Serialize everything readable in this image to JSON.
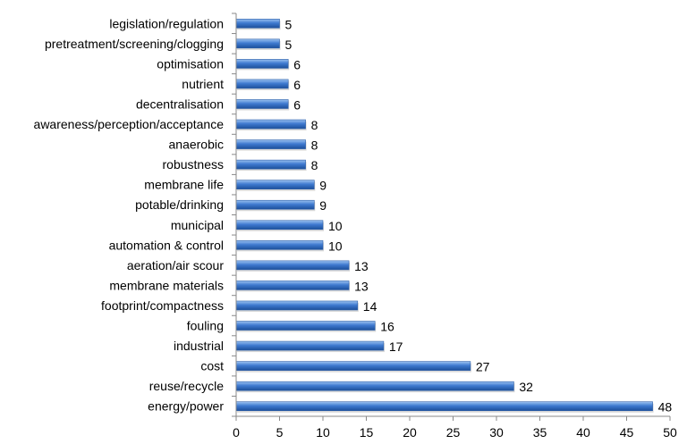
{
  "chart_data": {
    "type": "bar",
    "orientation": "horizontal",
    "categories": [
      "legislation/regulation",
      "pretreatment/screening/clogging",
      "optimisation",
      "nutrient",
      "decentralisation",
      "awareness/perception/acceptance",
      "anaerobic",
      "robustness",
      "membrane life",
      "potable/drinking",
      "municipal",
      "automation & control",
      "aeration/air scour",
      "membrane materials",
      "footprint/compactness",
      "fouling",
      "industrial",
      "cost",
      "reuse/recycle",
      "energy/power"
    ],
    "values": [
      5,
      5,
      6,
      6,
      6,
      8,
      8,
      8,
      9,
      9,
      10,
      10,
      13,
      13,
      14,
      16,
      17,
      27,
      32,
      48
    ],
    "xlim": [
      0,
      50
    ],
    "x_ticks": [
      0,
      5,
      10,
      15,
      20,
      25,
      30,
      35,
      40,
      45,
      50
    ],
    "data_labels": true,
    "grid": false,
    "bar_color": "#3f7ad0",
    "bar_color_light": "#9cc2f0",
    "bar_color_dark": "#1c4f9a"
  }
}
